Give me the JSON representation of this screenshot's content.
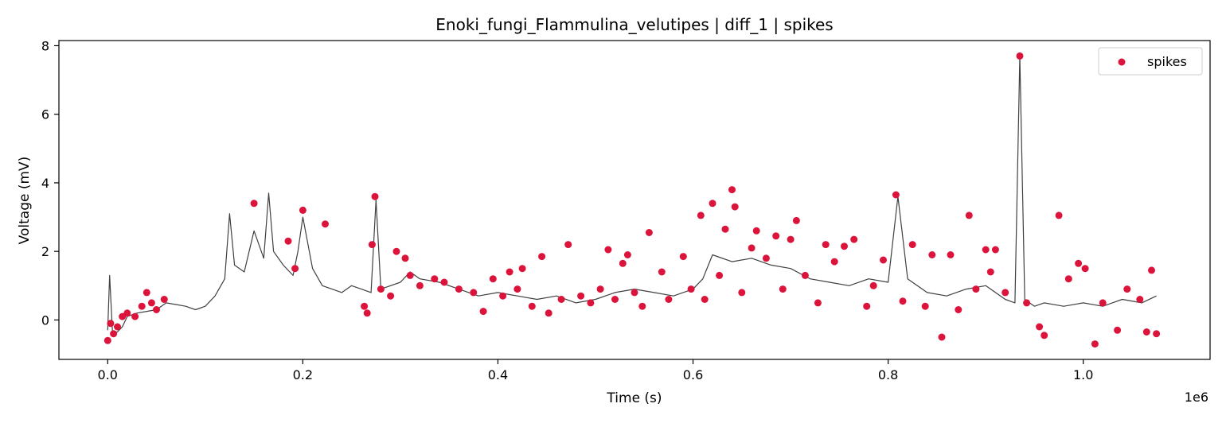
{
  "chart_data": {
    "type": "scatter",
    "title": "Enoki_fungi_Flammulina_velutipes | diff_1 | spikes",
    "xlabel": "Time (s)",
    "ylabel": "Voltage (mV)",
    "x_scale_label": "1e6",
    "xlim": [
      -50000,
      1130000
    ],
    "ylim": [
      -1.15,
      8.15
    ],
    "x_ticks": [
      0,
      200000,
      400000,
      600000,
      800000,
      1000000
    ],
    "x_tick_labels": [
      "0.0",
      "0.2",
      "0.4",
      "0.6",
      "0.8",
      "1.0"
    ],
    "y_ticks": [
      0,
      2,
      4,
      6,
      8
    ],
    "y_tick_labels": [
      "0",
      "2",
      "4",
      "6",
      "8"
    ],
    "grid": false,
    "legend_position": "top-right",
    "colors": {
      "signal": "#404040",
      "spikes": "#dc143c"
    },
    "signal": {
      "x": [
        0,
        2000,
        5000,
        10000,
        15000,
        20000,
        30000,
        40000,
        50000,
        60000,
        70000,
        80000,
        90000,
        100000,
        110000,
        120000,
        125000,
        130000,
        140000,
        150000,
        160000,
        165000,
        170000,
        180000,
        190000,
        195000,
        200000,
        210000,
        220000,
        230000,
        240000,
        250000,
        260000,
        270000,
        275000,
        280000,
        290000,
        300000,
        310000,
        320000,
        340000,
        360000,
        380000,
        400000,
        420000,
        440000,
        460000,
        480000,
        500000,
        520000,
        540000,
        560000,
        580000,
        600000,
        610000,
        620000,
        640000,
        660000,
        680000,
        700000,
        720000,
        740000,
        760000,
        780000,
        800000,
        810000,
        820000,
        840000,
        860000,
        880000,
        900000,
        920000,
        930000,
        935000,
        940000,
        950000,
        960000,
        980000,
        1000000,
        1020000,
        1040000,
        1060000,
        1075000
      ],
      "y": [
        -0.3,
        1.3,
        -0.4,
        -0.35,
        -0.2,
        0.1,
        0.2,
        0.25,
        0.3,
        0.5,
        0.45,
        0.4,
        0.3,
        0.4,
        0.7,
        1.2,
        3.1,
        1.6,
        1.4,
        2.6,
        1.8,
        3.7,
        2.0,
        1.6,
        1.3,
        2.0,
        3.0,
        1.5,
        1.0,
        0.9,
        0.8,
        1.0,
        0.9,
        0.8,
        3.5,
        0.9,
        1.0,
        1.1,
        1.4,
        1.2,
        1.1,
        0.9,
        0.7,
        0.8,
        0.7,
        0.6,
        0.7,
        0.5,
        0.6,
        0.8,
        0.9,
        0.8,
        0.7,
        0.9,
        1.2,
        1.9,
        1.7,
        1.8,
        1.6,
        1.5,
        1.2,
        1.1,
        1.0,
        1.2,
        1.1,
        3.6,
        1.2,
        0.8,
        0.7,
        0.9,
        1.0,
        0.6,
        0.5,
        7.7,
        0.6,
        0.4,
        0.5,
        0.4,
        0.5,
        0.4,
        0.6,
        0.5,
        0.7
      ]
    },
    "series": [
      {
        "name": "spikes",
        "x": [
          0,
          3000,
          6000,
          10000,
          15000,
          20000,
          28000,
          35000,
          40000,
          45000,
          50000,
          58000,
          150000,
          185000,
          192000,
          200000,
          223000,
          263000,
          266000,
          271000,
          274000,
          280000,
          290000,
          296000,
          305000,
          310000,
          320000,
          335000,
          345000,
          360000,
          375000,
          385000,
          395000,
          405000,
          412000,
          420000,
          425000,
          435000,
          445000,
          452000,
          465000,
          472000,
          485000,
          495000,
          505000,
          513000,
          520000,
          528000,
          533000,
          540000,
          548000,
          555000,
          568000,
          575000,
          590000,
          598000,
          608000,
          612000,
          620000,
          627000,
          633000,
          640000,
          643000,
          650000,
          660000,
          665000,
          675000,
          685000,
          692000,
          700000,
          706000,
          715000,
          728000,
          736000,
          745000,
          755000,
          765000,
          778000,
          785000,
          795000,
          808000,
          815000,
          825000,
          838000,
          845000,
          855000,
          864000,
          872000,
          883000,
          890000,
          900000,
          905000,
          910000,
          920000,
          935000,
          942000,
          955000,
          960000,
          975000,
          985000,
          995000,
          1002000,
          1012000,
          1020000,
          1035000,
          1045000,
          1058000,
          1065000,
          1070000,
          1075000
        ],
        "y": [
          -0.6,
          -0.1,
          -0.4,
          -0.2,
          0.1,
          0.2,
          0.1,
          0.4,
          0.8,
          0.5,
          0.3,
          0.6,
          3.4,
          2.3,
          1.5,
          3.2,
          2.8,
          0.4,
          0.2,
          2.2,
          3.6,
          0.9,
          0.7,
          2.0,
          1.8,
          1.3,
          1.0,
          1.2,
          1.1,
          0.9,
          0.8,
          0.25,
          1.2,
          0.7,
          1.4,
          0.9,
          1.5,
          0.4,
          1.85,
          0.2,
          0.6,
          2.2,
          0.7,
          0.5,
          0.9,
          2.05,
          0.6,
          1.65,
          1.9,
          0.8,
          0.4,
          2.55,
          1.4,
          0.6,
          1.85,
          0.9,
          3.05,
          0.6,
          3.4,
          1.3,
          2.65,
          3.8,
          3.3,
          0.8,
          2.1,
          2.6,
          1.8,
          2.45,
          0.9,
          2.35,
          2.9,
          1.3,
          0.5,
          2.2,
          1.7,
          2.15,
          2.35,
          0.4,
          1.0,
          1.75,
          3.65,
          0.55,
          2.2,
          0.4,
          1.9,
          -0.5,
          1.9,
          0.3,
          3.05,
          0.9,
          2.05,
          1.4,
          2.05,
          0.8,
          7.7,
          0.5,
          -0.2,
          -0.45,
          3.05,
          1.2,
          1.65,
          1.5,
          -0.7,
          0.5,
          -0.3,
          0.9,
          0.6,
          -0.35,
          1.45,
          -0.4
        ]
      }
    ]
  }
}
